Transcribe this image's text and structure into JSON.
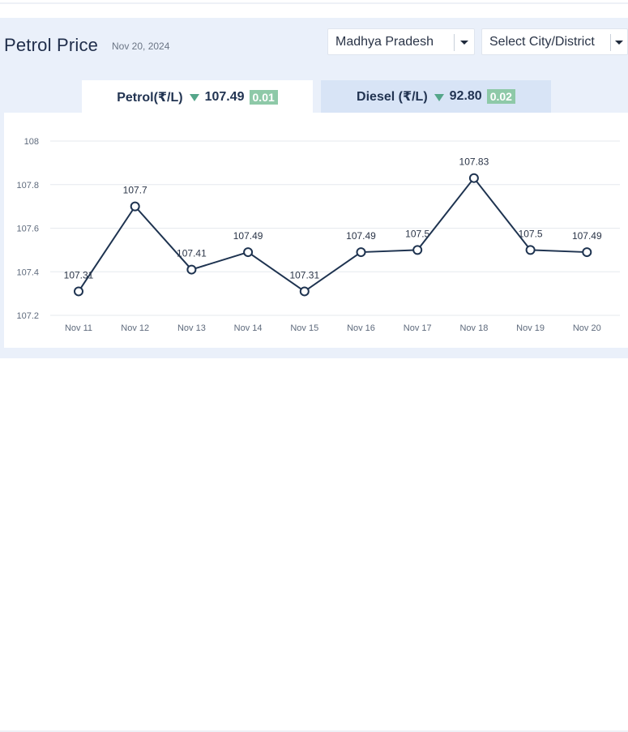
{
  "header": {
    "title": "Petrol Price",
    "date": "Nov 20, 2024"
  },
  "filters": {
    "state": "Madhya Pradesh",
    "city": "Select City/District"
  },
  "tabs": [
    {
      "label": "Petrol(₹/L)",
      "price": "107.49",
      "change": "0.01",
      "direction": "down",
      "active": true
    },
    {
      "label": "Diesel (₹/L)",
      "price": "92.80",
      "change": "0.02",
      "direction": "down",
      "active": false
    }
  ],
  "colors": {
    "line": "#1e3350",
    "badge": "#8ec9a8",
    "down_arrow": "#55a68a",
    "panel": "#eaf0fa"
  },
  "chart_data": {
    "type": "line",
    "categories": [
      "Nov 11",
      "Nov 12",
      "Nov 13",
      "Nov 14",
      "Nov 15",
      "Nov 16",
      "Nov 17",
      "Nov 18",
      "Nov 19",
      "Nov 20"
    ],
    "values": [
      107.31,
      107.7,
      107.41,
      107.49,
      107.31,
      107.49,
      107.5,
      107.83,
      107.5,
      107.49
    ],
    "data_labels": [
      "107.31",
      "107.7",
      "107.41",
      "107.49",
      "107.31",
      "107.49",
      "107.5",
      "107.83",
      "107.5",
      "107.49"
    ],
    "yticks": [
      "107.2",
      "107.4",
      "107.6",
      "107.8",
      "108"
    ],
    "ylim": [
      107.2,
      108
    ],
    "grid": true,
    "markers": "hollow-circle"
  }
}
